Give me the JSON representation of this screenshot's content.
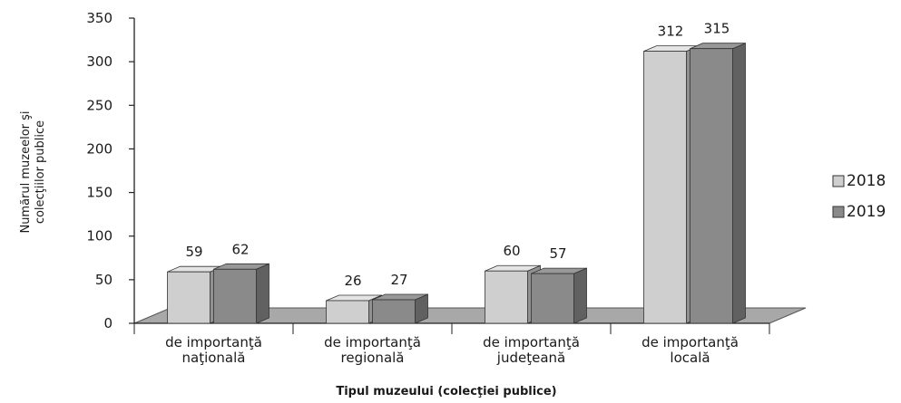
{
  "chart_data": {
    "type": "bar",
    "title": "",
    "xlabel": "Tipul muzeului (colecţiei publice)",
    "ylabel": [
      "Numărul muzeelor şi",
      "colecţiilor publice"
    ],
    "categories": [
      [
        "de importanţă",
        "naţională"
      ],
      [
        "de importanţă",
        "regională"
      ],
      [
        "de importanţă",
        "judeţeană"
      ],
      [
        "de importanţă",
        "locală"
      ]
    ],
    "series": [
      {
        "name": "2018",
        "values": [
          59,
          26,
          60,
          312
        ],
        "color": "#cfcfcf"
      },
      {
        "name": "2019",
        "values": [
          62,
          27,
          57,
          315
        ],
        "color": "#8a8a8a"
      }
    ],
    "ylim": [
      0,
      350
    ],
    "yticks": [
      "0",
      "50",
      "100",
      "150",
      "200",
      "250",
      "300",
      "350"
    ],
    "grid": false,
    "legend_position": "right"
  }
}
